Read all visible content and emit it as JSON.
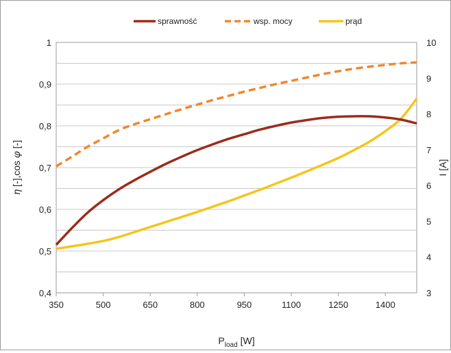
{
  "chart_data": {
    "type": "line",
    "legend": {
      "placement": "top-center",
      "items": [
        {
          "label": "sprawność",
          "series": "sprawnosc"
        },
        {
          "label": "wsp. mocy",
          "series": "wsp_mocy"
        },
        {
          "label": "prąd",
          "series": "prad"
        }
      ]
    },
    "xlabel": {
      "main": "P",
      "sub": "load",
      "unit": "[W]"
    },
    "ylabel_left": {
      "eta": "η",
      "mid": " [-],cos ",
      "phi": "φ",
      "end": " [-]"
    },
    "ylabel_right": "I [A]",
    "x_ticks": [
      "350",
      "500",
      "650",
      "800",
      "950",
      "1100",
      "1250",
      "1400"
    ],
    "y_left_ticks": [
      "0,4",
      "0,5",
      "0,6",
      "0,7",
      "0,8",
      "0,9",
      "1"
    ],
    "y_right_ticks": [
      "3",
      "4",
      "5",
      "6",
      "7",
      "8",
      "9",
      "10"
    ],
    "xlim": [
      350,
      1500
    ],
    "ylim_left": [
      0.4,
      1.0
    ],
    "ylim_right": [
      3,
      10
    ],
    "grid": "horizontal",
    "series": [
      {
        "key": "sprawnosc",
        "axis": "left",
        "color": "#9c2a1c",
        "dash": "solid",
        "x": [
          350,
          400,
          450,
          500,
          550,
          600,
          650,
          700,
          750,
          800,
          850,
          900,
          950,
          1000,
          1050,
          1100,
          1150,
          1200,
          1250,
          1300,
          1350,
          1400,
          1450,
          1500
        ],
        "y": [
          0.515,
          0.555,
          0.592,
          0.622,
          0.648,
          0.67,
          0.69,
          0.709,
          0.726,
          0.742,
          0.756,
          0.769,
          0.78,
          0.791,
          0.8,
          0.808,
          0.814,
          0.819,
          0.822,
          0.823,
          0.823,
          0.82,
          0.815,
          0.806
        ]
      },
      {
        "key": "wsp_mocy",
        "axis": "left",
        "color": "#f0872e",
        "dash": "dashed",
        "x": [
          350,
          400,
          450,
          500,
          550,
          600,
          650,
          700,
          750,
          800,
          850,
          900,
          950,
          1000,
          1050,
          1100,
          1150,
          1200,
          1250,
          1300,
          1350,
          1400,
          1450,
          1500
        ],
        "y": [
          0.703,
          0.726,
          0.75,
          0.77,
          0.79,
          0.804,
          0.816,
          0.828,
          0.84,
          0.851,
          0.862,
          0.872,
          0.882,
          0.891,
          0.9,
          0.908,
          0.916,
          0.924,
          0.931,
          0.937,
          0.942,
          0.946,
          0.95,
          0.952
        ]
      },
      {
        "key": "prad",
        "axis": "right",
        "color": "#f5c518",
        "dash": "solid",
        "x": [
          350,
          400,
          450,
          500,
          550,
          600,
          650,
          700,
          750,
          800,
          850,
          900,
          950,
          1000,
          1050,
          1100,
          1150,
          1200,
          1250,
          1300,
          1350,
          1400,
          1450,
          1500
        ],
        "y": [
          4.23,
          4.3,
          4.37,
          4.45,
          4.56,
          4.7,
          4.84,
          4.98,
          5.12,
          5.26,
          5.41,
          5.56,
          5.72,
          5.88,
          6.05,
          6.22,
          6.4,
          6.58,
          6.77,
          6.99,
          7.23,
          7.52,
          7.87,
          8.43
        ]
      }
    ]
  }
}
